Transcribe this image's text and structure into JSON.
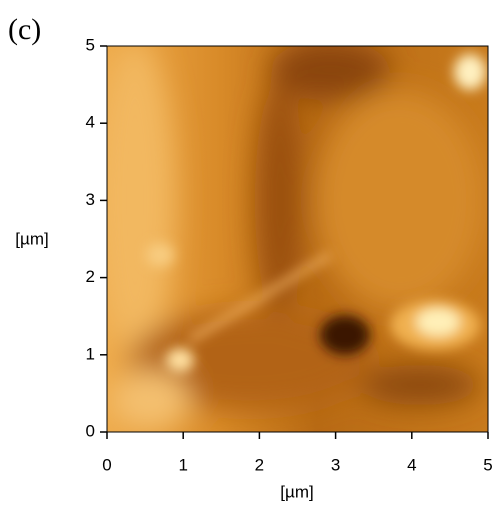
{
  "chart_data": {
    "type": "image",
    "title": "(c)",
    "x_label": "[µm]",
    "y_label": "[µm]",
    "xlim": [
      0,
      5
    ],
    "ylim": [
      0,
      5
    ],
    "xticks": [
      0,
      1,
      2,
      3,
      4,
      5
    ],
    "yticks": [
      0,
      1,
      2,
      3,
      4,
      5
    ]
  }
}
